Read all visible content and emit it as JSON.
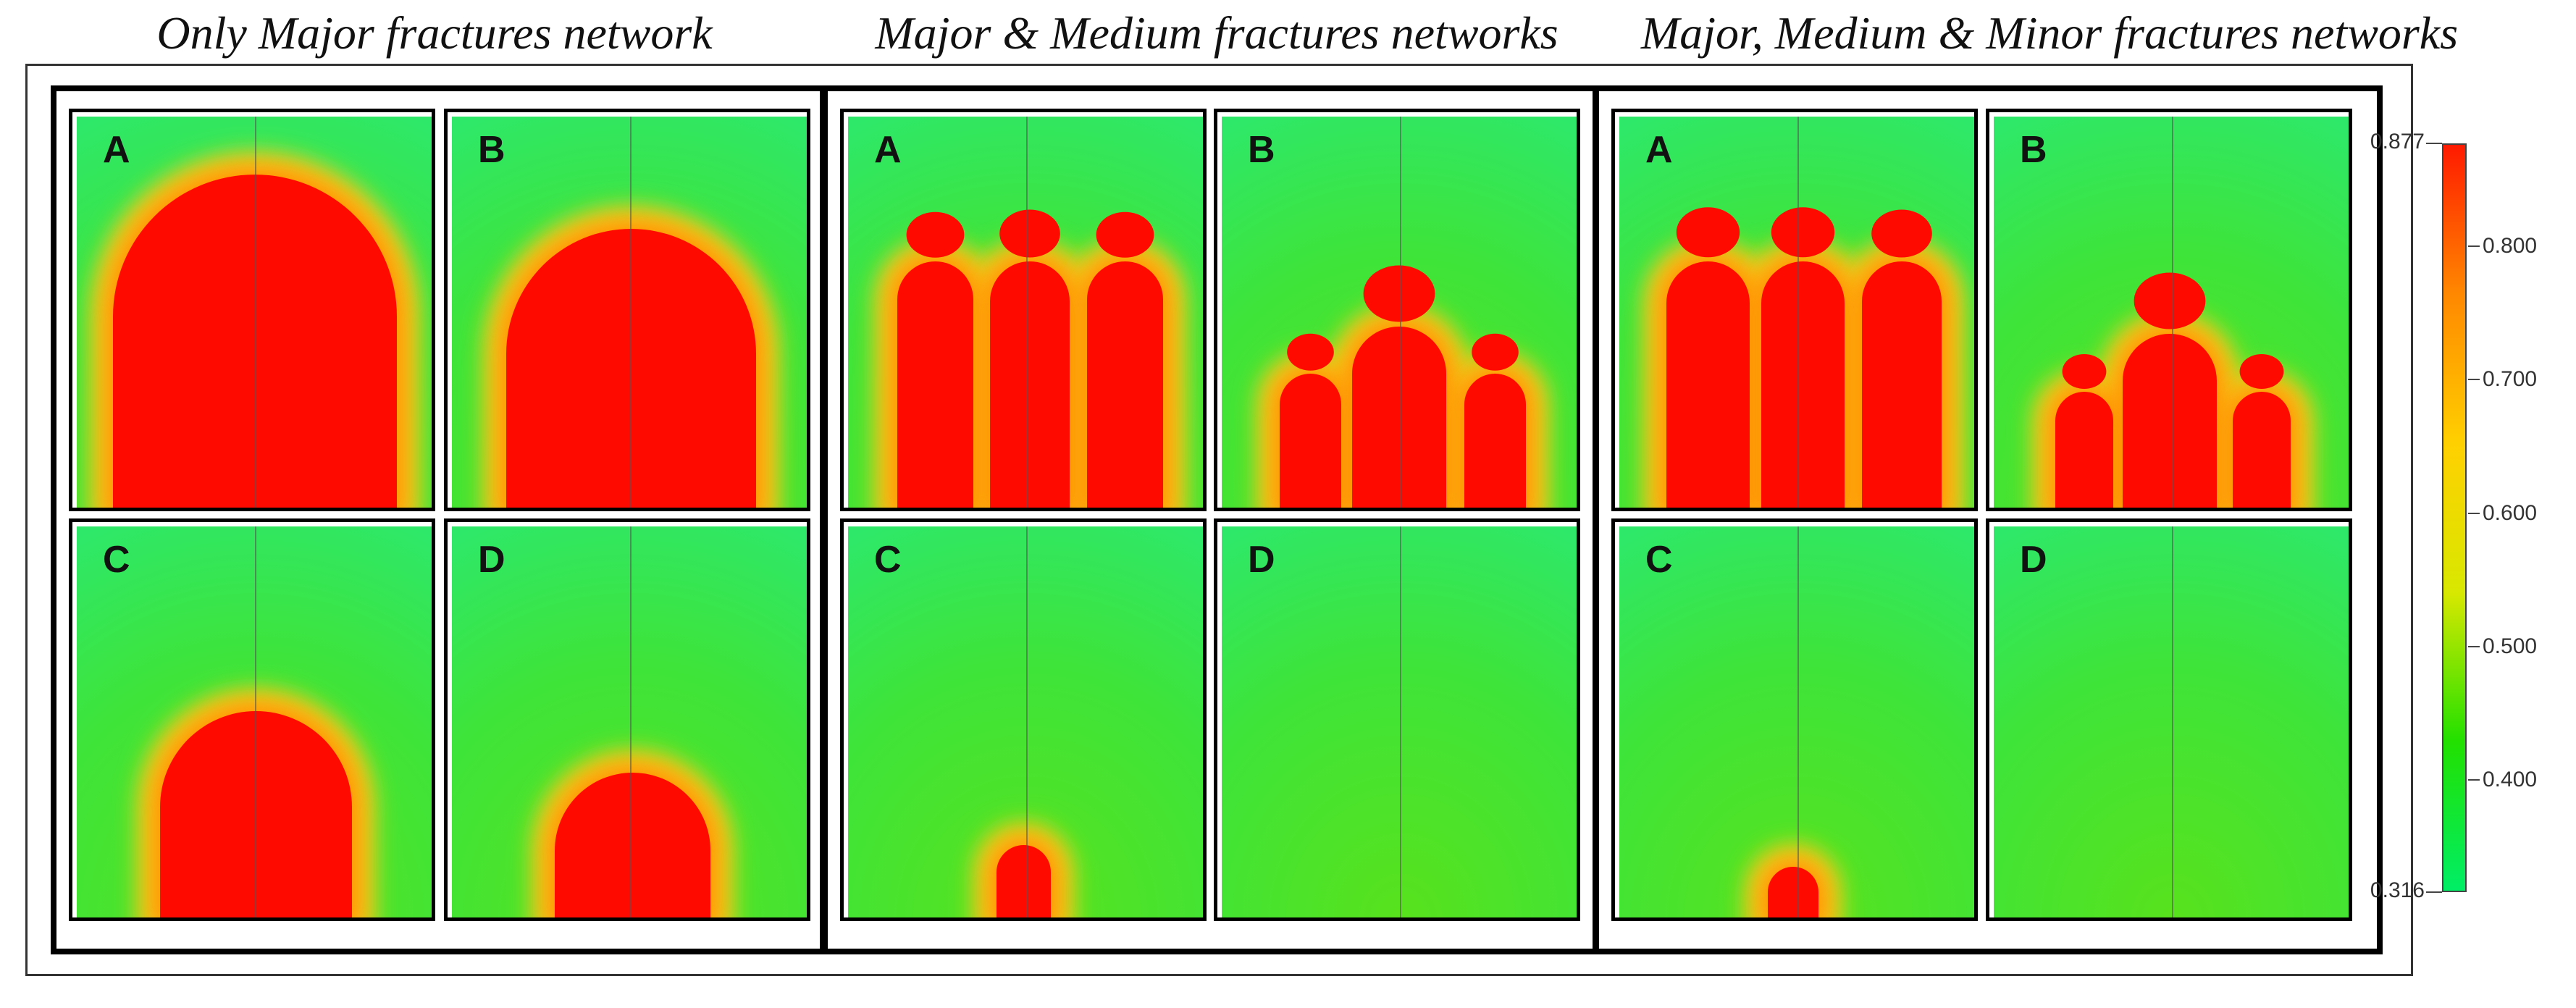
{
  "titles": [
    "Only Major fractures network",
    "Major & Medium fractures networks",
    "Major, Medium & Minor fractures networks"
  ],
  "panel_letters": [
    "A",
    "B",
    "C",
    "D"
  ],
  "colorbar": {
    "max_label": "0.877",
    "min_label": "0.316",
    "ticks": [
      "0.800",
      "0.700",
      "0.600",
      "0.500",
      "0.400"
    ],
    "tick_values": [
      0.8,
      0.7,
      0.6,
      0.5,
      0.4
    ],
    "min": 0.316,
    "max": 0.877,
    "colors": [
      "#00ee66",
      "#22e000",
      "#d8e800",
      "#ffd000",
      "#ff8800",
      "#ff1a00"
    ]
  },
  "colors": {
    "saturated": "#ff0a00",
    "background_green": "#3fe23a",
    "frame": "#000000"
  }
}
